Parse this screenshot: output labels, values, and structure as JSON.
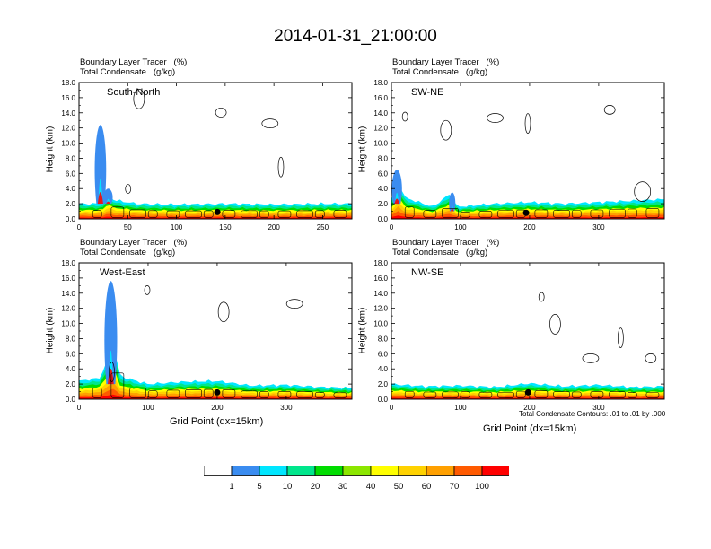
{
  "title": "2014-01-31_21:00:00",
  "colors": {
    "levels": [
      "#ffffff",
      "#3a8cf0",
      "#00e6ff",
      "#00e68c",
      "#00dc00",
      "#8ce600",
      "#ffff00",
      "#ffd200",
      "#ffa000",
      "#ff5a00",
      "#ff0000"
    ]
  },
  "colorbar": {
    "labels": [
      "1",
      "5",
      "10",
      "20",
      "30",
      "40",
      "50",
      "60",
      "70",
      "100"
    ]
  },
  "panels": [
    {
      "id": "south-north",
      "field_label_1": "Boundary Layer Tracer   (%)",
      "field_label_2": "Total Condensate   (g/kg)",
      "region_label": "South-North",
      "ylabel": "Height (km)",
      "xlabel": "",
      "note": ""
    },
    {
      "id": "sw-ne",
      "field_label_1": "Boundary Layer Tracer   (%)",
      "field_label_2": "Total Condensate   (g/kg)",
      "region_label": "SW-NE",
      "ylabel": "Height (km)",
      "xlabel": "",
      "note": ""
    },
    {
      "id": "west-east",
      "field_label_1": "Boundary Layer Tracer   (%)",
      "field_label_2": "Total Condensate   (g/kg)",
      "region_label": "West-East",
      "ylabel": "Height (km)",
      "xlabel": "Grid Point (dx=15km)",
      "note": ""
    },
    {
      "id": "nw-se",
      "field_label_1": "Boundary Layer Tracer   (%)",
      "field_label_2": "Total Condensate   (g/kg)",
      "region_label": "NW-SE",
      "ylabel": "Height (km)",
      "xlabel": "Grid Point (dx=15km)",
      "note": "Total Condensate Contours: .01 to .01 by .000"
    }
  ],
  "chart_data": [
    {
      "type": "heatmap",
      "panel": "south-north",
      "xlim": [
        0,
        280
      ],
      "ylim": [
        0,
        18
      ],
      "xticks": [
        0,
        50,
        100,
        150,
        200,
        250
      ],
      "yticks": [
        "0.0",
        "2.0",
        "4.0",
        "6.0",
        "8.0",
        "10.0",
        "12.0",
        "14.0",
        "16.0",
        "18.0"
      ],
      "marker": {
        "x": 142,
        "y": 0.9
      },
      "tracer_top_km": [
        [
          0,
          2.0
        ],
        [
          20,
          2.0
        ],
        [
          26,
          2.2
        ],
        [
          30,
          3.6
        ],
        [
          34,
          2.6
        ],
        [
          40,
          2.4
        ],
        [
          60,
          2.0
        ],
        [
          100,
          1.9
        ],
        [
          150,
          2.0
        ],
        [
          200,
          1.9
        ],
        [
          250,
          2.0
        ],
        [
          280,
          2.0
        ]
      ],
      "plumes": [
        {
          "x": 22,
          "y0": 2,
          "y1": 12.4,
          "w": 9
        },
        {
          "x": 30,
          "y0": 2,
          "y1": 4.0,
          "w": 7
        }
      ]
    },
    {
      "type": "heatmap",
      "panel": "sw-ne",
      "xlim": [
        0,
        395
      ],
      "ylim": [
        0,
        18
      ],
      "xticks": [
        0,
        100,
        200,
        300
      ],
      "yticks": [
        "0.0",
        "2.0",
        "4.0",
        "6.0",
        "8.0",
        "10.0",
        "12.0",
        "14.0",
        "16.0",
        "18.0"
      ],
      "marker": {
        "x": 195,
        "y": 0.8
      },
      "tracer_top_km": [
        [
          0,
          2.5
        ],
        [
          10,
          5.0
        ],
        [
          20,
          2.8
        ],
        [
          60,
          1.6
        ],
        [
          85,
          3.3
        ],
        [
          95,
          1.6
        ],
        [
          150,
          2.0
        ],
        [
          200,
          2.2
        ],
        [
          250,
          2.0
        ],
        [
          300,
          2.2
        ],
        [
          350,
          2.4
        ],
        [
          395,
          2.6
        ]
      ],
      "plumes": [
        {
          "x": 8,
          "y0": 2,
          "y1": 6.5,
          "w": 8
        },
        {
          "x": 88,
          "y0": 1,
          "y1": 3.5,
          "w": 5
        }
      ]
    },
    {
      "type": "heatmap",
      "panel": "west-east",
      "xlim": [
        0,
        395
      ],
      "ylim": [
        0,
        18
      ],
      "xticks": [
        0,
        100,
        200,
        300
      ],
      "yticks": [
        "0.0",
        "2.0",
        "4.0",
        "6.0",
        "8.0",
        "10.0",
        "12.0",
        "14.0",
        "16.0",
        "18.0"
      ],
      "marker": {
        "x": 200,
        "y": 0.9
      },
      "tracer_top_km": [
        [
          0,
          2.4
        ],
        [
          30,
          2.8
        ],
        [
          50,
          7.0
        ],
        [
          60,
          3.0
        ],
        [
          100,
          2.0
        ],
        [
          150,
          2.3
        ],
        [
          200,
          2.4
        ],
        [
          250,
          1.8
        ],
        [
          300,
          1.9
        ],
        [
          350,
          1.6
        ],
        [
          395,
          1.5
        ]
      ],
      "plumes": [
        {
          "x": 46,
          "y0": 2,
          "y1": 15.6,
          "w": 10
        }
      ]
    },
    {
      "type": "heatmap",
      "panel": "nw-se",
      "xlim": [
        0,
        395
      ],
      "ylim": [
        0,
        18
      ],
      "xticks": [
        0,
        100,
        200,
        300
      ],
      "yticks": [
        "0.0",
        "2.0",
        "4.0",
        "6.0",
        "8.0",
        "10.0",
        "12.0",
        "14.0",
        "16.0",
        "18.0"
      ],
      "marker": {
        "x": 198,
        "y": 0.9
      },
      "tracer_top_km": [
        [
          0,
          2.0
        ],
        [
          50,
          1.7
        ],
        [
          100,
          1.8
        ],
        [
          150,
          1.6
        ],
        [
          200,
          2.1
        ],
        [
          250,
          1.7
        ],
        [
          300,
          1.9
        ],
        [
          350,
          1.6
        ],
        [
          395,
          1.7
        ]
      ],
      "plumes": []
    }
  ]
}
